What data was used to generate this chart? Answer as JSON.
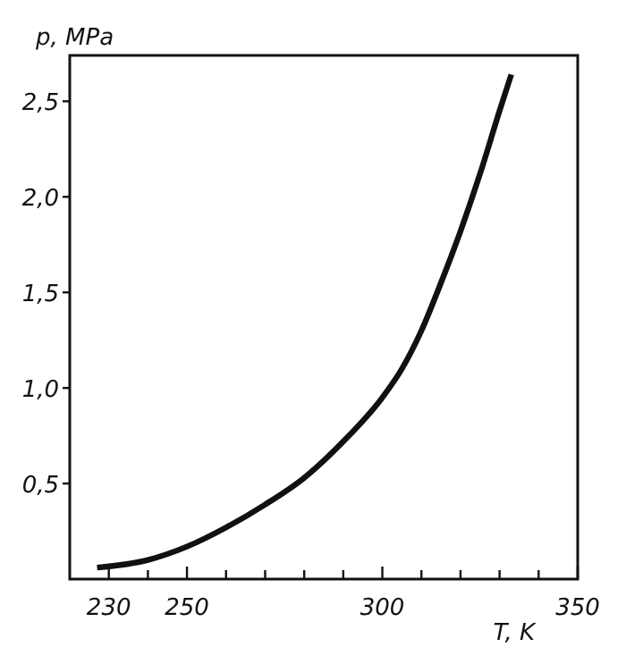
{
  "chart_data": {
    "type": "line",
    "xlabel": "T, K",
    "ylabel": "p, MPa",
    "xlim": [
      220,
      350
    ],
    "ylim": [
      0,
      2.74
    ],
    "xticks": [
      230,
      {
        "value": 240,
        "label": null
      },
      250,
      {
        "value": 260,
        "label": null
      },
      {
        "value": 270,
        "label": null
      },
      {
        "value": 280,
        "label": null
      },
      {
        "value": 290,
        "label": null
      },
      300,
      {
        "value": 310,
        "label": null
      },
      {
        "value": 320,
        "label": null
      },
      {
        "value": 330,
        "label": null
      },
      {
        "value": 340,
        "label": null
      },
      350
    ],
    "yticks": [
      {
        "value": 0.5,
        "label": "0,5"
      },
      {
        "value": 1.0,
        "label": "1,0"
      },
      {
        "value": 1.5,
        "label": "1,5"
      },
      {
        "value": 2.0,
        "label": "2,0"
      },
      {
        "value": 2.5,
        "label": "2,5"
      }
    ],
    "x": [
      227,
      240,
      250,
      260,
      270,
      280,
      290,
      300,
      305,
      310,
      315,
      320,
      325,
      330,
      333
    ],
    "series": [
      {
        "color": "#111111",
        "values": [
          0.06,
          0.1,
          0.17,
          0.27,
          0.39,
          0.53,
          0.72,
          0.95,
          1.1,
          1.3,
          1.55,
          1.82,
          2.12,
          2.45,
          2.64
        ]
      }
    ],
    "marker": "none",
    "line_style": "solid",
    "grid": false
  }
}
